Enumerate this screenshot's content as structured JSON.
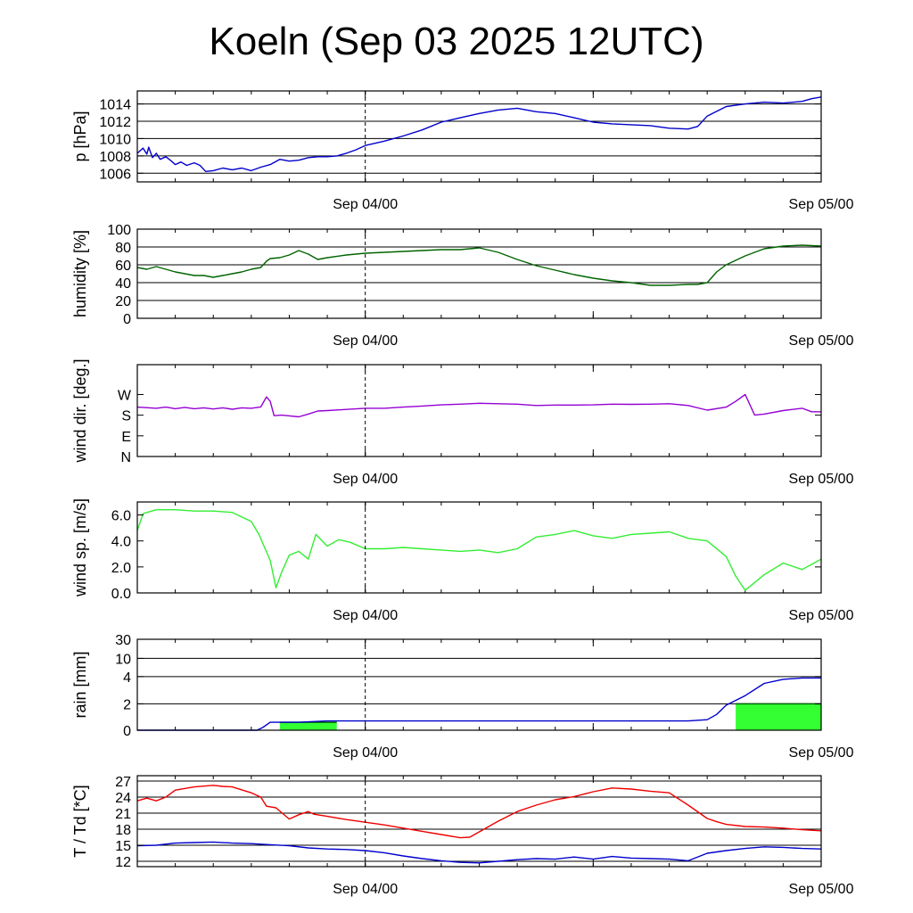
{
  "title": "Koeln (Sep 03 2025 12UTC)",
  "x_axis": {
    "range_hours": [
      0,
      36
    ],
    "ticks": [
      {
        "hour": 12,
        "label": "Sep 04/00"
      },
      {
        "hour": 36,
        "label": "Sep 05/00"
      }
    ],
    "dashed_marker_hour": 12
  },
  "colors": {
    "pressure": "#0000cc",
    "humidity": "#006400",
    "wind_dir": "#9400d3",
    "wind_speed": "#33ee33",
    "rain_cumulative": "#0000cc",
    "rain_bar": "#33ff33",
    "temperature": "#ee0000",
    "dewpoint": "#0000cc"
  },
  "chart_data": [
    {
      "type": "line",
      "id": "pressure",
      "ylabel": "p [hPa]",
      "ylim": [
        1005,
        1015.5
      ],
      "yticks": [
        1006,
        1008,
        1010,
        1012,
        1014
      ],
      "ytick_labels": [
        "1006",
        "1008",
        "1010",
        "1012",
        "1014"
      ],
      "gridlines": [
        1006,
        1008,
        1010,
        1012,
        1014
      ],
      "series": [
        {
          "name": "pressure",
          "color_key": "pressure",
          "x": [
            0,
            0.3,
            0.5,
            0.6,
            0.8,
            1.0,
            1.2,
            1.5,
            1.8,
            2.0,
            2.3,
            2.6,
            3.0,
            3.3,
            3.6,
            4.0,
            4.5,
            5.0,
            5.5,
            6.0,
            6.5,
            7.0,
            7.5,
            8.0,
            8.5,
            9.0,
            9.5,
            10.0,
            10.5,
            11.0,
            11.5,
            12.0,
            13.0,
            14.0,
            15.0,
            16.0,
            17.0,
            18.0,
            19.0,
            20.0,
            21.0,
            22.0,
            23.0,
            24.0,
            25.0,
            26.0,
            27.0,
            28.0,
            29.0,
            29.5,
            30.0,
            31.0,
            32.0,
            33.0,
            34.0,
            35.0,
            35.5,
            36.0
          ],
          "y": [
            1008.3,
            1008.9,
            1008.2,
            1009.0,
            1007.8,
            1008.3,
            1007.6,
            1007.9,
            1007.4,
            1007.0,
            1007.3,
            1006.9,
            1007.2,
            1006.9,
            1006.2,
            1006.3,
            1006.6,
            1006.4,
            1006.6,
            1006.3,
            1006.7,
            1007.0,
            1007.6,
            1007.4,
            1007.5,
            1007.8,
            1007.9,
            1007.9,
            1008.0,
            1008.3,
            1008.7,
            1009.2,
            1009.7,
            1010.3,
            1011.0,
            1011.9,
            1012.4,
            1012.9,
            1013.3,
            1013.5,
            1013.1,
            1012.9,
            1012.4,
            1011.9,
            1011.7,
            1011.6,
            1011.5,
            1011.2,
            1011.1,
            1011.4,
            1012.6,
            1013.7,
            1014.0,
            1014.2,
            1014.1,
            1014.3,
            1014.6,
            1014.8
          ]
        }
      ]
    },
    {
      "type": "line",
      "id": "humidity",
      "ylabel": "humidity [%]",
      "ylim": [
        0,
        100
      ],
      "yticks": [
        0,
        20,
        40,
        60,
        80,
        100
      ],
      "ytick_labels": [
        "0",
        "20",
        "40",
        "60",
        "80",
        "100"
      ],
      "gridlines": [
        20,
        40,
        60,
        80
      ],
      "series": [
        {
          "name": "humidity",
          "color_key": "humidity",
          "x": [
            0,
            0.5,
            1,
            1.5,
            2,
            2.5,
            3,
            3.5,
            4,
            4.5,
            5,
            5.5,
            6,
            6.5,
            6.8,
            7.0,
            7.5,
            8.0,
            8.5,
            9.0,
            9.5,
            10,
            11,
            12,
            13,
            14,
            15,
            16,
            17,
            18,
            19,
            20,
            21,
            22,
            23,
            24,
            25,
            26,
            27,
            28,
            29,
            29.5,
            30,
            30.5,
            31,
            32,
            33,
            34,
            35,
            36
          ],
          "y": [
            57,
            55,
            58,
            55,
            52,
            50,
            48,
            48,
            46,
            48,
            50,
            52,
            55,
            57,
            64,
            67,
            68,
            71,
            76,
            72,
            66,
            68,
            71,
            73,
            74,
            75,
            76,
            77,
            77,
            79,
            74,
            66,
            59,
            54,
            49,
            45,
            42,
            40,
            37,
            37,
            38,
            38,
            40,
            52,
            60,
            70,
            78,
            81,
            82,
            81
          ]
        }
      ]
    },
    {
      "type": "line",
      "id": "wind_dir",
      "ylabel": "wind dir. [deg.]",
      "ylim": [
        0,
        400
      ],
      "yticks": [
        0,
        90,
        180,
        270
      ],
      "ytick_labels": [
        "N",
        "E",
        "S",
        "W"
      ],
      "gridlines": [],
      "series": [
        {
          "name": "wind direction",
          "color_key": "wind_dir",
          "x": [
            0,
            1,
            1.5,
            2,
            2.5,
            3,
            3.5,
            4,
            4.5,
            5,
            5.5,
            6,
            6.5,
            6.8,
            7.0,
            7.2,
            7.6,
            8.0,
            8.5,
            9.0,
            9.5,
            10,
            11,
            12,
            13,
            14,
            15,
            16,
            17,
            18,
            19,
            20,
            21,
            22,
            23,
            24,
            25,
            26,
            27,
            28,
            29,
            30,
            31,
            31.5,
            32,
            32.5,
            33,
            34,
            35,
            35.5,
            36
          ],
          "y": [
            215,
            210,
            215,
            208,
            214,
            208,
            212,
            207,
            212,
            206,
            212,
            210,
            216,
            260,
            240,
            178,
            180,
            177,
            173,
            185,
            198,
            200,
            205,
            210,
            210,
            215,
            220,
            225,
            228,
            232,
            230,
            228,
            222,
            224,
            224,
            225,
            228,
            227,
            228,
            230,
            222,
            202,
            215,
            240,
            270,
            180,
            185,
            200,
            210,
            195,
            195
          ]
        }
      ]
    },
    {
      "type": "line",
      "id": "wind_speed",
      "ylabel": "wind sp. [m/s]",
      "ylim": [
        0,
        7.0
      ],
      "yticks": [
        0,
        2,
        4,
        6
      ],
      "ytick_labels": [
        "0.0",
        "2.0",
        "4.0",
        "6.0"
      ],
      "gridlines": [],
      "series": [
        {
          "name": "wind speed",
          "color_key": "wind_speed",
          "x": [
            0,
            0.3,
            1,
            2,
            3,
            4,
            5,
            6,
            6.4,
            7.0,
            7.3,
            7.6,
            8.0,
            8.5,
            9.0,
            9.4,
            10.0,
            10.6,
            11.2,
            12,
            13,
            14,
            15,
            16,
            17,
            18,
            19,
            20,
            21,
            22,
            23,
            24,
            25,
            26,
            27,
            28,
            29,
            30,
            31,
            31.5,
            32,
            33,
            34,
            35,
            36
          ],
          "y": [
            4.8,
            6.1,
            6.4,
            6.4,
            6.3,
            6.3,
            6.2,
            5.5,
            4.5,
            2.5,
            0.4,
            1.6,
            2.9,
            3.2,
            2.6,
            4.5,
            3.6,
            4.1,
            3.9,
            3.4,
            3.4,
            3.5,
            3.4,
            3.3,
            3.2,
            3.3,
            3.1,
            3.4,
            4.3,
            4.5,
            4.8,
            4.4,
            4.2,
            4.5,
            4.6,
            4.7,
            4.2,
            4.0,
            2.8,
            1.3,
            0.2,
            1.4,
            2.3,
            1.8,
            2.6
          ]
        }
      ]
    },
    {
      "type": "bar+line",
      "id": "rain",
      "ylabel": "rain [mm]",
      "scale": "piecewise",
      "scale_points": [
        [
          0,
          0
        ],
        [
          2,
          0.29
        ],
        [
          4,
          0.59
        ],
        [
          10,
          0.79
        ],
        [
          30,
          1.0
        ]
      ],
      "yticks": [
        0,
        2,
        4,
        10,
        30
      ],
      "ytick_labels": [
        "0",
        "2",
        "4",
        "10",
        "30"
      ],
      "gridlines": [
        2,
        4,
        10,
        30
      ],
      "bars": [
        {
          "x0": 7.5,
          "x1": 10.5,
          "value": 0.6,
          "color_key": "rain_bar"
        },
        {
          "x0": 31.5,
          "x1": 36,
          "value": 2.0,
          "color_key": "rain_bar"
        }
      ],
      "series": [
        {
          "name": "cumulative rain",
          "color_key": "rain_cumulative",
          "x": [
            0,
            6.3,
            6.6,
            7.0,
            8.5,
            10,
            12,
            18,
            24,
            29,
            30,
            30.5,
            31,
            32,
            33,
            34,
            35,
            36
          ],
          "y": [
            0,
            0,
            0.2,
            0.6,
            0.6,
            0.7,
            0.7,
            0.7,
            0.7,
            0.7,
            0.8,
            1.2,
            1.9,
            2.6,
            3.5,
            3.8,
            3.9,
            3.9
          ]
        }
      ]
    },
    {
      "type": "line",
      "id": "temperature",
      "ylabel": "T / Td [*C]",
      "ylim": [
        11,
        28
      ],
      "yticks": [
        12,
        15,
        18,
        21,
        24,
        27
      ],
      "ytick_labels": [
        "12",
        "15",
        "18",
        "21",
        "24",
        "27"
      ],
      "gridlines": [
        12,
        15,
        18,
        21,
        24,
        27
      ],
      "series": [
        {
          "name": "temperature",
          "color_key": "temperature",
          "x": [
            0,
            0.5,
            1,
            1.5,
            2,
            3,
            4,
            4.5,
            5,
            6,
            6.5,
            6.8,
            7.3,
            8.0,
            8.5,
            9.0,
            9.3,
            10,
            11,
            12,
            13,
            14,
            15,
            16,
            17,
            17.5,
            18,
            19,
            20,
            21,
            22,
            23,
            24,
            25,
            26,
            27,
            28,
            29,
            30,
            30.5,
            31,
            32,
            33,
            34,
            35,
            36
          ],
          "y": [
            23.3,
            23.8,
            23.3,
            24.0,
            25.3,
            25.9,
            26.2,
            26.0,
            25.9,
            24.8,
            24.0,
            22.3,
            22.0,
            19.9,
            20.7,
            21.3,
            20.8,
            20.4,
            19.8,
            19.3,
            18.8,
            18.2,
            17.6,
            17.0,
            16.4,
            16.5,
            17.5,
            19.5,
            21.3,
            22.5,
            23.5,
            24.1,
            25.0,
            25.7,
            25.5,
            25.1,
            24.8,
            22.5,
            20.0,
            19.4,
            18.9,
            18.5,
            18.4,
            18.2,
            17.9,
            17.7
          ]
        },
        {
          "name": "dewpoint",
          "color_key": "dewpoint",
          "x": [
            0,
            1,
            2,
            3,
            4,
            5,
            6,
            7,
            8,
            9,
            10,
            11,
            12,
            13,
            14,
            15,
            16,
            17,
            18,
            19,
            20,
            21,
            22,
            23,
            24,
            25,
            26,
            27,
            28,
            29,
            30,
            31,
            32,
            33,
            34,
            35,
            36
          ],
          "y": [
            14.9,
            15.0,
            15.4,
            15.5,
            15.6,
            15.4,
            15.3,
            15.1,
            14.9,
            14.5,
            14.3,
            14.2,
            14.0,
            13.6,
            13.0,
            12.5,
            12.1,
            11.8,
            11.7,
            12.0,
            12.3,
            12.5,
            12.4,
            12.8,
            12.4,
            12.9,
            12.6,
            12.5,
            12.4,
            12.1,
            13.5,
            14.0,
            14.4,
            14.7,
            14.6,
            14.4,
            14.3
          ]
        }
      ]
    }
  ]
}
